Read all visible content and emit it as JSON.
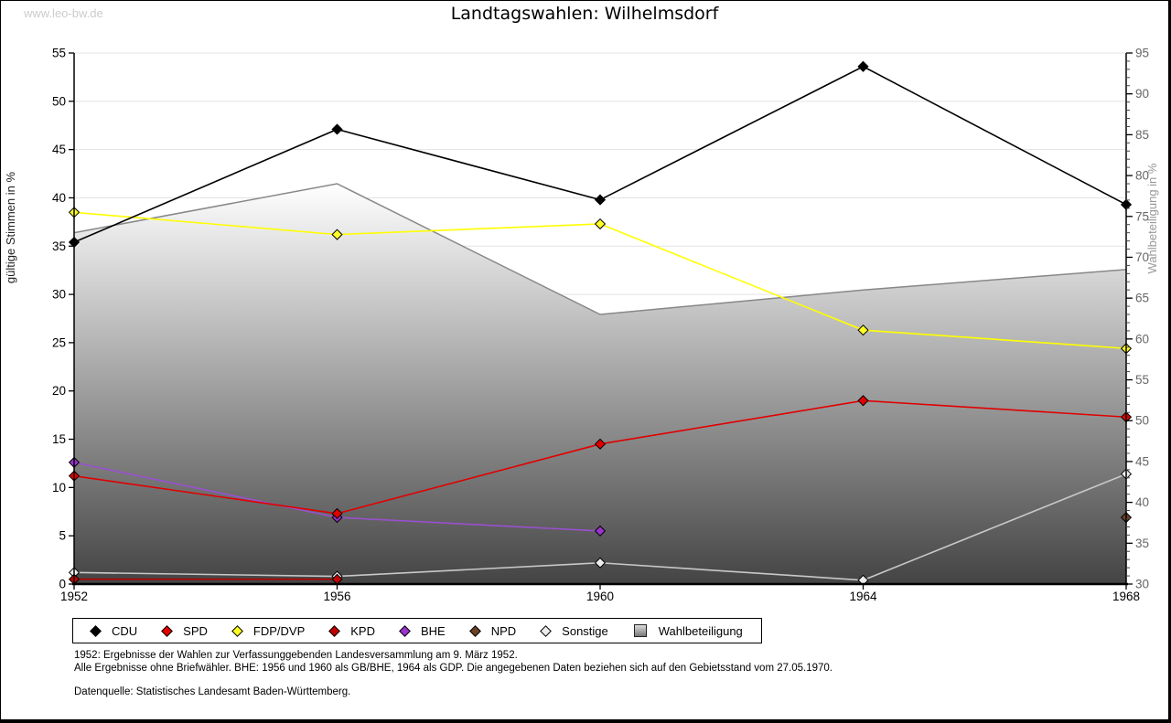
{
  "watermark": "www.leo-bw.de",
  "title": "Landtagswahlen: Wilhelmsdorf",
  "chart_data": {
    "type": "line",
    "x": [
      1952,
      1956,
      1960,
      1964,
      1968
    ],
    "x_tick_labels": [
      "1952",
      "1956",
      "1960",
      "1964",
      "1968"
    ],
    "grid": true,
    "legend_position": "bottom",
    "left_axis": {
      "label": "gültige Stimmen in %",
      "min": 0,
      "max": 55,
      "tick_step": 5,
      "label_color": "#222222",
      "tick_color": "#000000"
    },
    "right_axis": {
      "label": "Wahlbeteiligung in %",
      "min": 30,
      "max": 95,
      "tick_step": 5,
      "minor_step": 1,
      "label_color": "#999999",
      "tick_color": "#666666"
    },
    "series": [
      {
        "id": "cdu",
        "name": "CDU",
        "color": "#000000",
        "marker": "#000000",
        "axis": "left",
        "x": [
          1952,
          1956,
          1960,
          1964,
          1968
        ],
        "values": [
          35.4,
          47.1,
          39.8,
          53.6,
          39.3
        ]
      },
      {
        "id": "spd",
        "name": "SPD",
        "color": "#e10000",
        "marker": "#e10000",
        "axis": "left",
        "x": [
          1952,
          1956,
          1960,
          1964,
          1968
        ],
        "values": [
          11.2,
          7.3,
          14.5,
          19.0,
          17.3
        ]
      },
      {
        "id": "fdp-dvp",
        "name": "FDP/DVP",
        "color": "#ffff00",
        "marker": "#ffff22",
        "axis": "left",
        "x": [
          1952,
          1956,
          1960,
          1964,
          1968
        ],
        "values": [
          38.5,
          36.2,
          37.3,
          26.3,
          24.4
        ]
      },
      {
        "id": "kpd",
        "name": "KPD",
        "color": "#b40000",
        "marker": "#c00000",
        "axis": "left",
        "x": [
          1952,
          1956
        ],
        "values": [
          0.5,
          0.5
        ]
      },
      {
        "id": "bhe",
        "name": "BHE",
        "color": "#9a50d0",
        "marker": "#9933cc",
        "axis": "left",
        "x": [
          1952,
          1956,
          1960
        ],
        "values": [
          12.6,
          6.9,
          5.5
        ]
      },
      {
        "id": "npd",
        "name": "NPD",
        "color": "#6b4226",
        "marker": "#6b4226",
        "axis": "left",
        "x": [
          1968
        ],
        "values": [
          6.9
        ]
      },
      {
        "id": "sonstige",
        "name": "Sonstige",
        "color": "#c8c8c8",
        "marker": "#ececec",
        "axis": "left",
        "x": [
          1952,
          1956,
          1960,
          1964,
          1968
        ],
        "values": [
          1.2,
          0.8,
          2.2,
          0.4,
          11.4
        ]
      }
    ],
    "turnout": {
      "id": "wahlbeteiligung",
      "name": "Wahlbeteiligung",
      "type": "area",
      "axis": "right",
      "x": [
        1952,
        1956,
        1960,
        1964,
        1968
      ],
      "values": [
        73,
        79,
        63,
        66,
        68.5
      ],
      "line_color": "#888888",
      "gradient_top": "#ffffff",
      "gradient_bottom": "#444444"
    },
    "gridline_color": "#e3e3e3"
  },
  "footnotes": {
    "line1": "1952: Ergebnisse der Wahlen zur Verfassunggebenden Landesversammlung am 9. März 1952.",
    "line2": "Alle Ergebnisse ohne Briefwähler. BHE: 1956 und 1960 als GB/BHE, 1964 als GDP. Die angegebenen Daten beziehen sich auf den Gebietsstand vom 27.05.1970.",
    "source": "Datenquelle: Statistisches Landesamt Baden-Württemberg."
  }
}
